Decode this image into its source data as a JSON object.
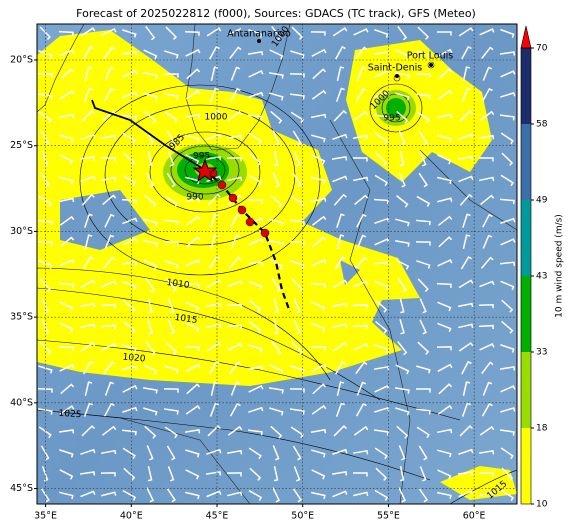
{
  "title": "Forecast of 2025022812 (f000), Sources: GDACS (TC track), GFS (Meteo)",
  "map": {
    "xlim": [
      34.5,
      62.5
    ],
    "ylim": [
      -45.9,
      -17.9
    ],
    "xticks": [
      {
        "value": 35,
        "label": "35°E"
      },
      {
        "value": 40,
        "label": "40°E"
      },
      {
        "value": 45,
        "label": "45°E"
      },
      {
        "value": 50,
        "label": "50°E"
      },
      {
        "value": 55,
        "label": "55°E"
      },
      {
        "value": 60,
        "label": "60°E"
      }
    ],
    "yticks": [
      {
        "value": -20,
        "label": "20°S"
      },
      {
        "value": -25,
        "label": "25°S"
      },
      {
        "value": -30,
        "label": "30°S"
      },
      {
        "value": -35,
        "label": "35°S"
      },
      {
        "value": -40,
        "label": "40°S"
      },
      {
        "value": -45,
        "label": "45°S"
      }
    ],
    "grid": true
  },
  "colorbar": {
    "label": "10 m wind speed (m/s)",
    "ticks": [
      10,
      18,
      33,
      43,
      49,
      58,
      70
    ],
    "colors": [
      "#ffff00",
      "#99dd00",
      "#00b000",
      "#009a9a",
      "#3a6fa8",
      "#1c2d6b"
    ],
    "extend_color": "#ff0000"
  },
  "places": [
    "Antananarivo",
    "Port Louis",
    "Saint-Denis"
  ],
  "contour_labels": [
    1000,
    985,
    995,
    990,
    1010,
    1015,
    1020,
    1025,
    1000,
    995,
    1000,
    1015
  ]
}
